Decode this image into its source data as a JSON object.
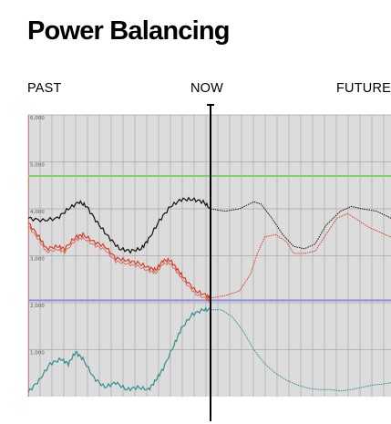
{
  "header": {
    "title": "Power Balancing"
  },
  "timeline": {
    "past": "PAST",
    "now": "NOW",
    "future": "FUTURE"
  },
  "colors": {
    "panel": "#dcdcdc",
    "grid": "#a9a9a9",
    "black_series": "#111111",
    "red_series": "#d6402a",
    "teal_series": "#2f8f8f",
    "green_line": "#7fd36a",
    "blue_line": "#8f8fe0",
    "now_line": "#000000"
  },
  "chart_data": {
    "type": "line",
    "title": "Power Balancing",
    "xlabel": "",
    "ylabel": "",
    "ylim": [
      0,
      6000
    ],
    "yticks": [
      "1,000",
      "2,000",
      "3,000",
      "4,000",
      "5,000",
      "6,000"
    ],
    "ytick_values": [
      1000,
      2000,
      3000,
      4000,
      5000,
      6000
    ],
    "x_range": [
      0,
      100
    ],
    "now_x": 50,
    "grid": true,
    "vertical_gridlines": 31,
    "reference_lines": [
      {
        "y": 4700,
        "color": "#7fd36a"
      },
      {
        "y": 2050,
        "color": "#8f8fe0"
      }
    ],
    "series": [
      {
        "color": "#111111",
        "past": [
          [
            0,
            3800
          ],
          [
            4,
            3750
          ],
          [
            8,
            3800
          ],
          [
            11,
            4000
          ],
          [
            14,
            4150
          ],
          [
            16,
            4050
          ],
          [
            19,
            3700
          ],
          [
            22,
            3400
          ],
          [
            25,
            3150
          ],
          [
            28,
            3100
          ],
          [
            31,
            3150
          ],
          [
            33,
            3350
          ],
          [
            36,
            3750
          ],
          [
            39,
            4050
          ],
          [
            42,
            4200
          ],
          [
            45,
            4200
          ],
          [
            48,
            4150
          ],
          [
            50,
            4000
          ]
        ],
        "future": [
          [
            50,
            4000
          ],
          [
            54,
            3950
          ],
          [
            58,
            4000
          ],
          [
            62,
            4150
          ],
          [
            64,
            4100
          ],
          [
            67,
            3800
          ],
          [
            70,
            3450
          ],
          [
            73,
            3200
          ],
          [
            76,
            3150
          ],
          [
            79,
            3250
          ],
          [
            82,
            3650
          ],
          [
            86,
            3950
          ],
          [
            89,
            4050
          ],
          [
            92,
            4000
          ],
          [
            96,
            3950
          ],
          [
            100,
            3800
          ]
        ]
      },
      {
        "color": "#d6402a",
        "past": [
          [
            0,
            3700
          ],
          [
            3,
            3400
          ],
          [
            5,
            3150
          ],
          [
            8,
            3200
          ],
          [
            10,
            3150
          ],
          [
            13,
            3400
          ],
          [
            15,
            3450
          ],
          [
            18,
            3300
          ],
          [
            21,
            3200
          ],
          [
            24,
            2950
          ],
          [
            27,
            2900
          ],
          [
            30,
            2850
          ],
          [
            33,
            2750
          ],
          [
            35,
            2700
          ],
          [
            37,
            2900
          ],
          [
            39,
            2900
          ],
          [
            41,
            2700
          ],
          [
            43,
            2500
          ],
          [
            46,
            2250
          ],
          [
            49,
            2150
          ],
          [
            50,
            2100
          ]
        ],
        "future": [
          [
            50,
            2100
          ],
          [
            54,
            2150
          ],
          [
            58,
            2250
          ],
          [
            61,
            2600
          ],
          [
            63,
            3050
          ],
          [
            65,
            3400
          ],
          [
            68,
            3450
          ],
          [
            71,
            3300
          ],
          [
            73,
            3050
          ],
          [
            76,
            3050
          ],
          [
            79,
            3100
          ],
          [
            82,
            3450
          ],
          [
            85,
            3800
          ],
          [
            88,
            3900
          ],
          [
            91,
            3750
          ],
          [
            94,
            3600
          ],
          [
            97,
            3500
          ],
          [
            100,
            3400
          ]
        ]
      },
      {
        "color": "#2f8f8f",
        "past": [
          [
            0,
            100
          ],
          [
            3,
            350
          ],
          [
            6,
            700
          ],
          [
            9,
            800
          ],
          [
            11,
            700
          ],
          [
            13,
            950
          ],
          [
            15,
            800
          ],
          [
            18,
            400
          ],
          [
            21,
            200
          ],
          [
            24,
            300
          ],
          [
            27,
            150
          ],
          [
            30,
            200
          ],
          [
            33,
            150
          ],
          [
            35,
            350
          ],
          [
            37,
            600
          ],
          [
            40,
            1100
          ],
          [
            42,
            1450
          ],
          [
            45,
            1750
          ],
          [
            48,
            1850
          ],
          [
            50,
            1850
          ]
        ],
        "future": [
          [
            50,
            1850
          ],
          [
            53,
            1850
          ],
          [
            56,
            1700
          ],
          [
            59,
            1400
          ],
          [
            62,
            1000
          ],
          [
            65,
            700
          ],
          [
            68,
            500
          ],
          [
            71,
            350
          ],
          [
            74,
            250
          ],
          [
            77,
            180
          ],
          [
            80,
            150
          ],
          [
            83,
            150
          ],
          [
            86,
            120
          ],
          [
            89,
            150
          ],
          [
            92,
            200
          ],
          [
            95,
            250
          ],
          [
            98,
            270
          ],
          [
            100,
            300
          ]
        ]
      }
    ]
  }
}
